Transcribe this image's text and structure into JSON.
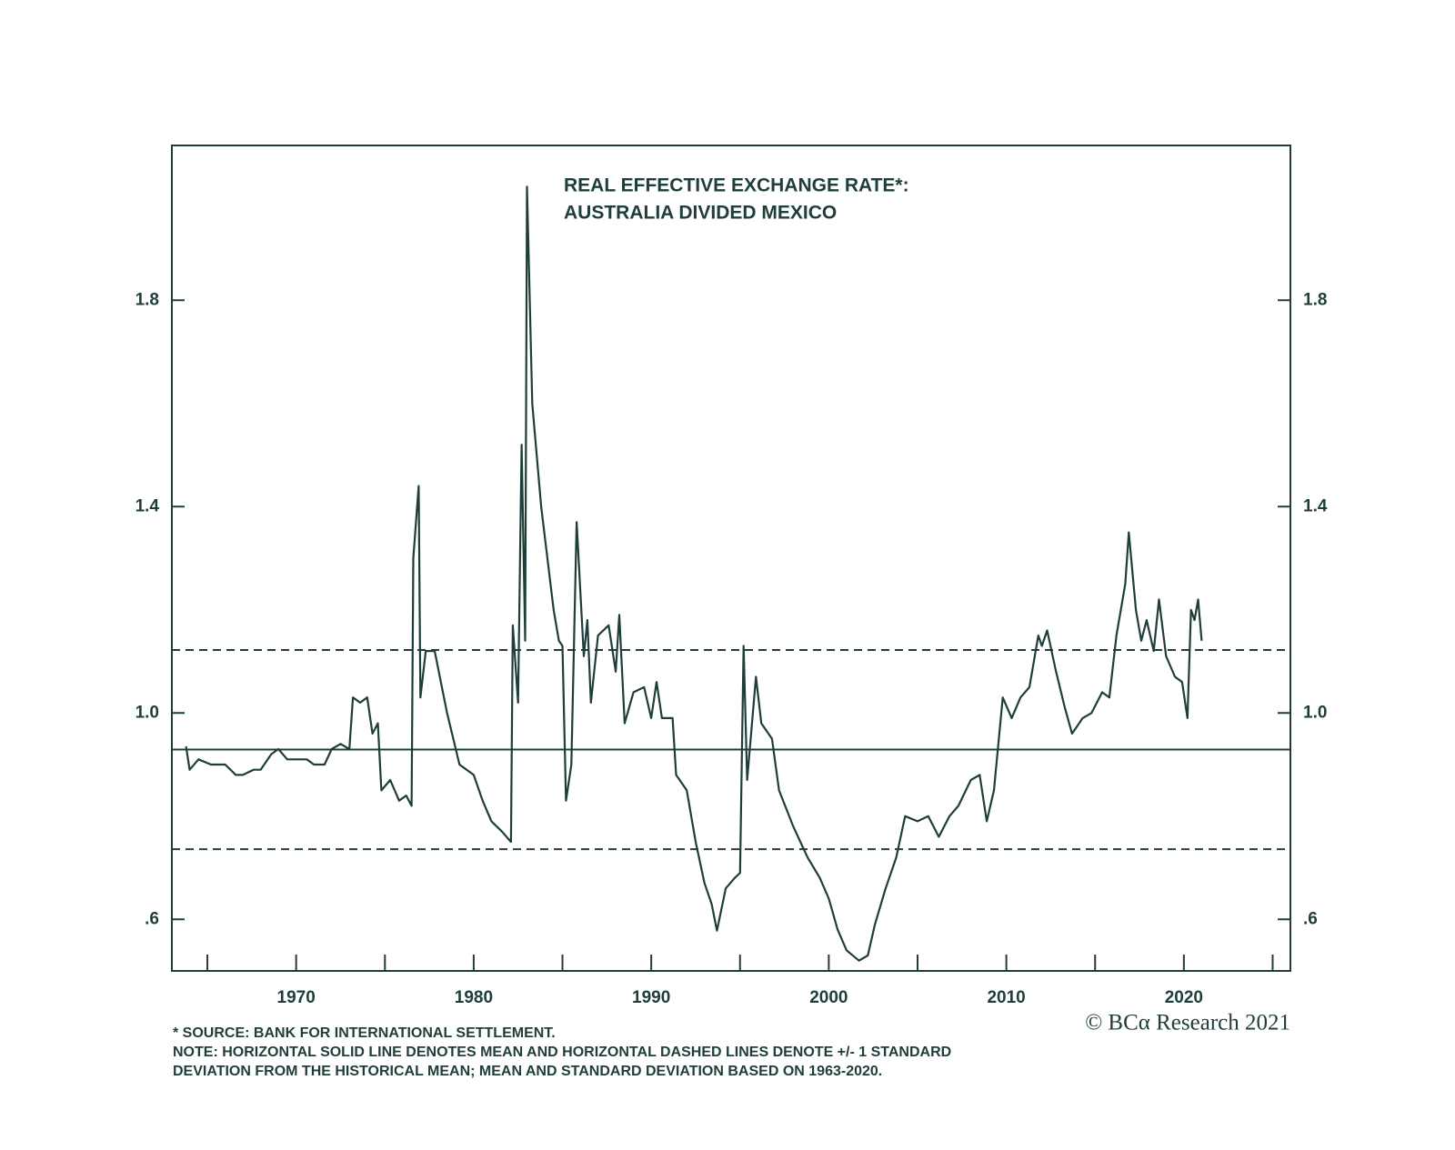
{
  "chart_data": {
    "type": "line",
    "title": "REAL EFFECTIVE EXCHANGE RATE*:",
    "subtitle": "AUSTRALIA DIVIDED MEXICO",
    "notes": [
      "* SOURCE: BANK FOR INTERNATIONAL SETTLEMENT.",
      "NOTE: HORIZONTAL SOLID LINE DENOTES MEAN AND HORIZONTAL DASHED LINES DENOTE +/- 1 STANDARD",
      "DEVIATION FROM THE HISTORICAL MEAN; MEAN AND STANDARD DEVIATION BASED ON 1963-2020."
    ],
    "credit": "© BCα Research 2021",
    "xlim": [
      1963,
      2026
    ],
    "xticks": [
      1970,
      1980,
      1990,
      2000,
      2010,
      2020
    ],
    "xminorticks": [
      1965,
      1975,
      1985,
      1995,
      2005,
      2015,
      2025
    ],
    "ylim": [
      0.5,
      2.1
    ],
    "yticks": [
      {
        "value": 0.6,
        "label": ".6"
      },
      {
        "value": 1,
        "label": "1.0"
      },
      1.4,
      1.8
    ],
    "y2lim": [
      0.5,
      2.1
    ],
    "y2ticks": [
      {
        "value": 0.6,
        "label": ".6"
      },
      {
        "value": 1,
        "label": "1.0"
      },
      1.4,
      1.8
    ],
    "reference_lines": [
      {
        "value": 0.929,
        "style": "solid"
      },
      {
        "value": 1.122,
        "style": "dashed"
      },
      {
        "value": 0.736,
        "style": "dashed"
      }
    ],
    "x": [
      1963.8,
      1964.0,
      1964.5,
      1965.2,
      1966.0,
      1966.6,
      1967.0,
      1967.6,
      1968.0,
      1968.6,
      1969.0,
      1969.5,
      1970.0,
      1970.6,
      1971.0,
      1971.6,
      1972.0,
      1972.5,
      1973.0,
      1973.2,
      1973.6,
      1974.0,
      1974.3,
      1974.6,
      1974.8,
      1975.3,
      1975.8,
      1976.2,
      1976.5,
      1976.6,
      1976.9,
      1977.0,
      1977.3,
      1977.8,
      1978.5,
      1979.2,
      1980.0,
      1980.5,
      1981.0,
      1981.6,
      1982.1,
      1982.2,
      1982.5,
      1982.7,
      1982.9,
      1983.0,
      1983.3,
      1983.8,
      1984.5,
      1984.8,
      1985.0,
      1985.2,
      1985.5,
      1985.8,
      1986.2,
      1986.4,
      1986.6,
      1987.0,
      1987.6,
      1988.0,
      1988.2,
      1988.5,
      1989.0,
      1989.6,
      1990.0,
      1990.3,
      1990.6,
      1991.2,
      1991.4,
      1992.0,
      1992.5,
      1993.0,
      1993.4,
      1993.7,
      1994.2,
      1994.7,
      1995.0,
      1995.2,
      1995.4,
      1995.9,
      1996.2,
      1996.8,
      1997.2,
      1998.0,
      1998.8,
      1999.5,
      2000.0,
      2000.5,
      2001.0,
      2001.7,
      2002.2,
      2002.6,
      2003.2,
      2003.8,
      2004.3,
      2005.0,
      2005.6,
      2006.2,
      2006.8,
      2007.3,
      2008.0,
      2008.5,
      2008.9,
      2009.3,
      2009.8,
      2010.3,
      2010.8,
      2011.3,
      2011.8,
      2012.0,
      2012.3,
      2012.8,
      2013.3,
      2013.7,
      2014.3,
      2014.8,
      2015.4,
      2015.8,
      2016.2,
      2016.7,
      2016.9,
      2017.3,
      2017.6,
      2017.9,
      2018.3,
      2018.6,
      2019.0,
      2019.5,
      2019.9,
      2020.2,
      2020.4,
      2020.6,
      2020.8,
      2021.0
    ],
    "series": [
      {
        "name": "AUSTRALIA DIVIDED MEXICO",
        "color": "#1f3d3a",
        "values": [
          0.935,
          0.89,
          0.91,
          0.9,
          0.9,
          0.88,
          0.88,
          0.89,
          0.89,
          0.92,
          0.93,
          0.91,
          0.91,
          0.91,
          0.9,
          0.9,
          0.93,
          0.94,
          0.93,
          1.03,
          1.02,
          1.03,
          0.96,
          0.98,
          0.85,
          0.87,
          0.83,
          0.84,
          0.82,
          1.3,
          1.44,
          1.03,
          1.12,
          1.12,
          1.0,
          0.9,
          0.88,
          0.83,
          0.79,
          0.77,
          0.75,
          1.17,
          1.02,
          1.52,
          1.14,
          2.02,
          1.6,
          1.4,
          1.2,
          1.14,
          1.13,
          0.83,
          0.9,
          1.37,
          1.11,
          1.18,
          1.02,
          1.15,
          1.17,
          1.08,
          1.19,
          0.98,
          1.04,
          1.05,
          0.99,
          1.06,
          0.99,
          0.99,
          0.88,
          0.85,
          0.75,
          0.67,
          0.63,
          0.578,
          0.66,
          0.68,
          0.69,
          1.13,
          0.87,
          1.07,
          0.98,
          0.95,
          0.85,
          0.78,
          0.72,
          0.68,
          0.64,
          0.58,
          0.54,
          0.52,
          0.53,
          0.59,
          0.66,
          0.72,
          0.8,
          0.79,
          0.8,
          0.76,
          0.8,
          0.82,
          0.87,
          0.88,
          0.79,
          0.85,
          1.03,
          0.99,
          1.03,
          1.05,
          1.15,
          1.13,
          1.16,
          1.08,
          1.01,
          0.96,
          0.99,
          1.0,
          1.04,
          1.03,
          1.15,
          1.25,
          1.35,
          1.2,
          1.14,
          1.18,
          1.12,
          1.22,
          1.11,
          1.07,
          1.06,
          0.99,
          1.2,
          1.18,
          1.22,
          1.14
        ]
      }
    ]
  }
}
